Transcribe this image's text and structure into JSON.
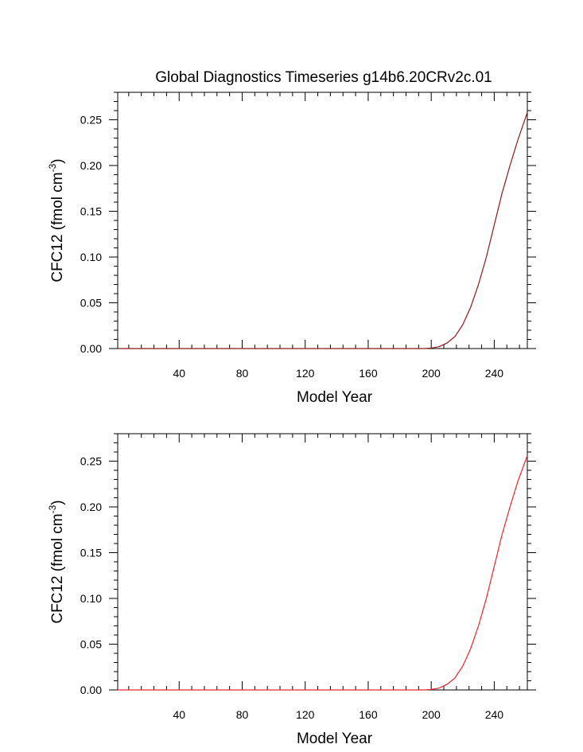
{
  "title": "Global Diagnostics Timeseries g14b6.20CRv2c.01",
  "chart_data": [
    {
      "type": "line",
      "xlabel": "Model Year",
      "ylabel_parts": {
        "main": "CFC12 (fmol cm",
        "sup": "-3",
        "end": ")"
      },
      "xlim": [
        1,
        261
      ],
      "ylim": [
        0,
        0.28
      ],
      "xticks": [
        40,
        80,
        120,
        160,
        200,
        240
      ],
      "yticks": [
        0.0,
        0.05,
        0.1,
        0.15,
        0.2,
        0.25
      ],
      "ytick_labels": [
        "0.00",
        "0.05",
        "0.10",
        "0.15",
        "0.20",
        "0.25"
      ],
      "grid": false,
      "series": [
        {
          "color": "#8b1a1a",
          "x": [
            1,
            40,
            80,
            120,
            160,
            195,
            200,
            205,
            210,
            215,
            220,
            225,
            230,
            235,
            240,
            245,
            250,
            255,
            261
          ],
          "y": [
            0,
            0,
            0,
            0,
            0,
            0,
            0.0005,
            0.002,
            0.006,
            0.013,
            0.026,
            0.045,
            0.07,
            0.1,
            0.135,
            0.17,
            0.2,
            0.228,
            0.258
          ]
        }
      ]
    },
    {
      "type": "line",
      "xlabel": "Model Year",
      "ylabel_parts": {
        "main": "CFC12 (fmol cm",
        "sup": "-3",
        "end": ")"
      },
      "xlim": [
        1,
        261
      ],
      "ylim": [
        0,
        0.28
      ],
      "xticks": [
        40,
        80,
        120,
        160,
        200,
        240
      ],
      "yticks": [
        0.0,
        0.05,
        0.1,
        0.15,
        0.2,
        0.25
      ],
      "ytick_labels": [
        "0.00",
        "0.05",
        "0.10",
        "0.15",
        "0.20",
        "0.25"
      ],
      "grid": false,
      "series": [
        {
          "color": "#e8262c",
          "x": [
            1,
            40,
            80,
            120,
            160,
            195,
            200,
            205,
            210,
            215,
            220,
            225,
            230,
            235,
            240,
            245,
            250,
            255,
            261
          ],
          "y": [
            0,
            0,
            0,
            0,
            0,
            0,
            0.0005,
            0.002,
            0.006,
            0.013,
            0.026,
            0.045,
            0.07,
            0.1,
            0.135,
            0.17,
            0.2,
            0.228,
            0.256
          ]
        }
      ]
    }
  ]
}
